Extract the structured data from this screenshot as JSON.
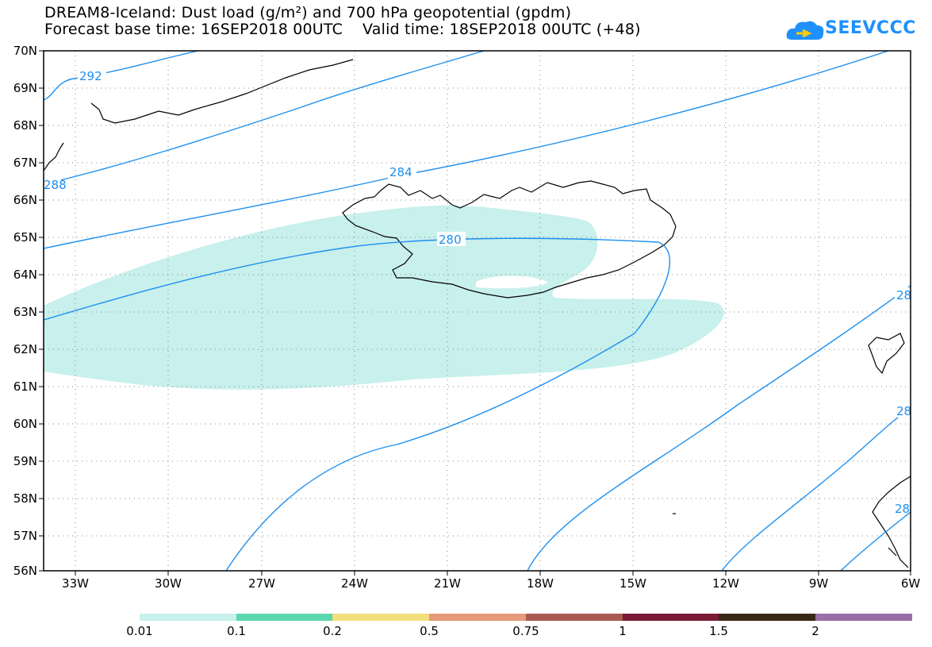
{
  "title": {
    "line1": "DREAM8-Iceland: Dust load (g/m²) and 700 hPa geopotential (gpdm)",
    "line2": "Forecast base time: 16SEP2018 00UTC    Valid time: 18SEP2018 00UTC (+48)"
  },
  "logo": {
    "text": "SEEVCCC"
  },
  "axes": {
    "lat_labels": [
      "70N",
      "69N",
      "68N",
      "67N",
      "66N",
      "65N",
      "64N",
      "63N",
      "62N",
      "61N",
      "60N",
      "59N",
      "58N",
      "57N",
      "56N"
    ],
    "lon_labels": [
      "33W",
      "30W",
      "27W",
      "24W",
      "21W",
      "18W",
      "15W",
      "12W",
      "9W",
      "6W"
    ]
  },
  "contours": {
    "labels": [
      "292",
      "288",
      "284",
      "280",
      "28",
      "28",
      "28"
    ]
  },
  "legend": {
    "colors": [
      "#c8f0ec",
      "#5bd8b0",
      "#f3e07c",
      "#e49b7a",
      "#a85a50",
      "#7a1a36",
      "#3a2817",
      "#9a6ea6"
    ],
    "labels": [
      "0.01",
      "0.1",
      "0.2",
      "0.5",
      "0.75",
      "1",
      "1.5",
      "2"
    ]
  },
  "colors": {
    "contour": "#1e90ef",
    "dust": "#c8f0ec"
  }
}
